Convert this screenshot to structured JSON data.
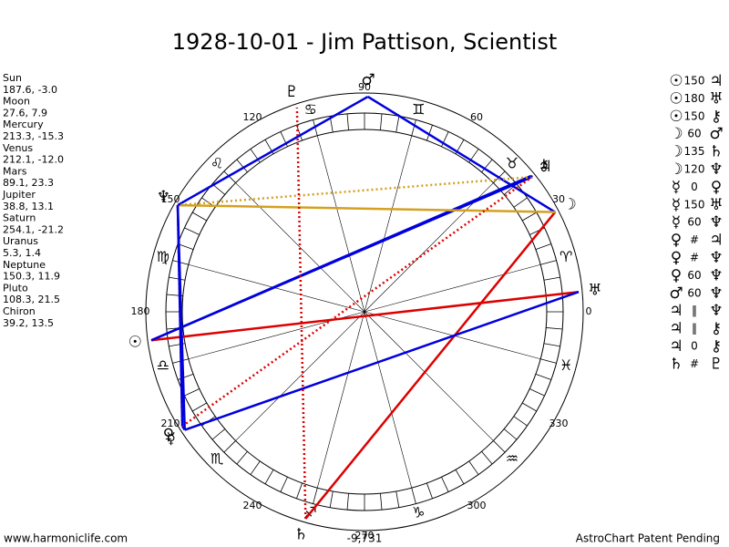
{
  "header": {
    "title": "1928-10-01 - Jim Pattison, Scientist"
  },
  "planets": [
    {
      "name": "Sun",
      "glyph": "☉",
      "position": "187.6, -3.0"
    },
    {
      "name": "Moon",
      "glyph": "☽",
      "position": "27.6, 7.9"
    },
    {
      "name": "Mercury",
      "glyph": "☿",
      "position": "213.3, -15.3"
    },
    {
      "name": "Venus",
      "glyph": "♀",
      "position": "212.1, -12.0"
    },
    {
      "name": "Mars",
      "glyph": "♂",
      "position": "89.1, 23.3"
    },
    {
      "name": "Jupiter",
      "glyph": "♃",
      "position": "38.8, 13.1"
    },
    {
      "name": "Saturn",
      "glyph": "♄",
      "position": "254.1, -21.2"
    },
    {
      "name": "Uranus",
      "glyph": "♅",
      "position": "5.3, 1.4"
    },
    {
      "name": "Neptune",
      "glyph": "♆",
      "position": "150.3, 11.9"
    },
    {
      "name": "Pluto",
      "glyph": "♇",
      "position": "108.3, 21.5"
    },
    {
      "name": "Chiron",
      "glyph": "⚷",
      "position": "39.2, 13.5"
    }
  ],
  "aspects": [
    {
      "from": "☉",
      "label": "150",
      "to": "♃",
      "color": "#0000dd",
      "dashed": false
    },
    {
      "from": "☉",
      "label": "180",
      "to": "♅",
      "color": "#dd0000",
      "dashed": false
    },
    {
      "from": "☉",
      "label": "150",
      "to": "⚷",
      "color": "#0000dd",
      "dashed": false
    },
    {
      "from": "☽",
      "label": "60",
      "to": "♂",
      "color": "#0000dd",
      "dashed": false
    },
    {
      "from": "☽",
      "label": "135",
      "to": "♄",
      "color": "#dd0000",
      "dashed": false
    },
    {
      "from": "☽",
      "label": "120",
      "to": "♆",
      "color": "#d4a020",
      "dashed": false
    },
    {
      "from": "☿",
      "label": "0",
      "to": "♀",
      "color": "#0000dd",
      "dashed": false
    },
    {
      "from": "☿",
      "label": "150",
      "to": "♅",
      "color": "#0000dd",
      "dashed": false
    },
    {
      "from": "☿",
      "label": "60",
      "to": "♆",
      "color": "#0000dd",
      "dashed": false
    },
    {
      "from": "♀",
      "label": "#",
      "to": "♃",
      "color": "#dd0000",
      "dashed": true
    },
    {
      "from": "♀",
      "label": "#",
      "to": "♆",
      "color": "#dd0000",
      "dashed": true
    },
    {
      "from": "♀",
      "label": "60",
      "to": "♆",
      "color": "#0000dd",
      "dashed": false
    },
    {
      "from": "♂",
      "label": "60",
      "to": "♆",
      "color": "#0000dd",
      "dashed": false
    },
    {
      "from": "♃",
      "label": "‖",
      "to": "♆",
      "color": "#d4a020",
      "dashed": true
    },
    {
      "from": "♃",
      "label": "‖",
      "to": "⚷",
      "color": "#d4a020",
      "dashed": true
    },
    {
      "from": "♃",
      "label": "0",
      "to": "⚷",
      "color": "#0000dd",
      "dashed": false
    },
    {
      "from": "♄",
      "label": "#",
      "to": "♇",
      "color": "#dd0000",
      "dashed": true
    }
  ],
  "degree_labels": [
    0,
    30,
    60,
    90,
    120,
    150,
    180,
    210,
    240,
    270,
    300,
    330
  ],
  "signs": [
    "♈",
    "♉",
    "♊",
    "♋",
    "♌",
    "♍",
    "♎",
    "♏",
    "♐",
    "♑",
    "♒",
    "♓"
  ],
  "bottom_value": "-9,731",
  "footer": {
    "left": "www.harmoniclife.com",
    "right": "AstroChart Patent Pending"
  }
}
